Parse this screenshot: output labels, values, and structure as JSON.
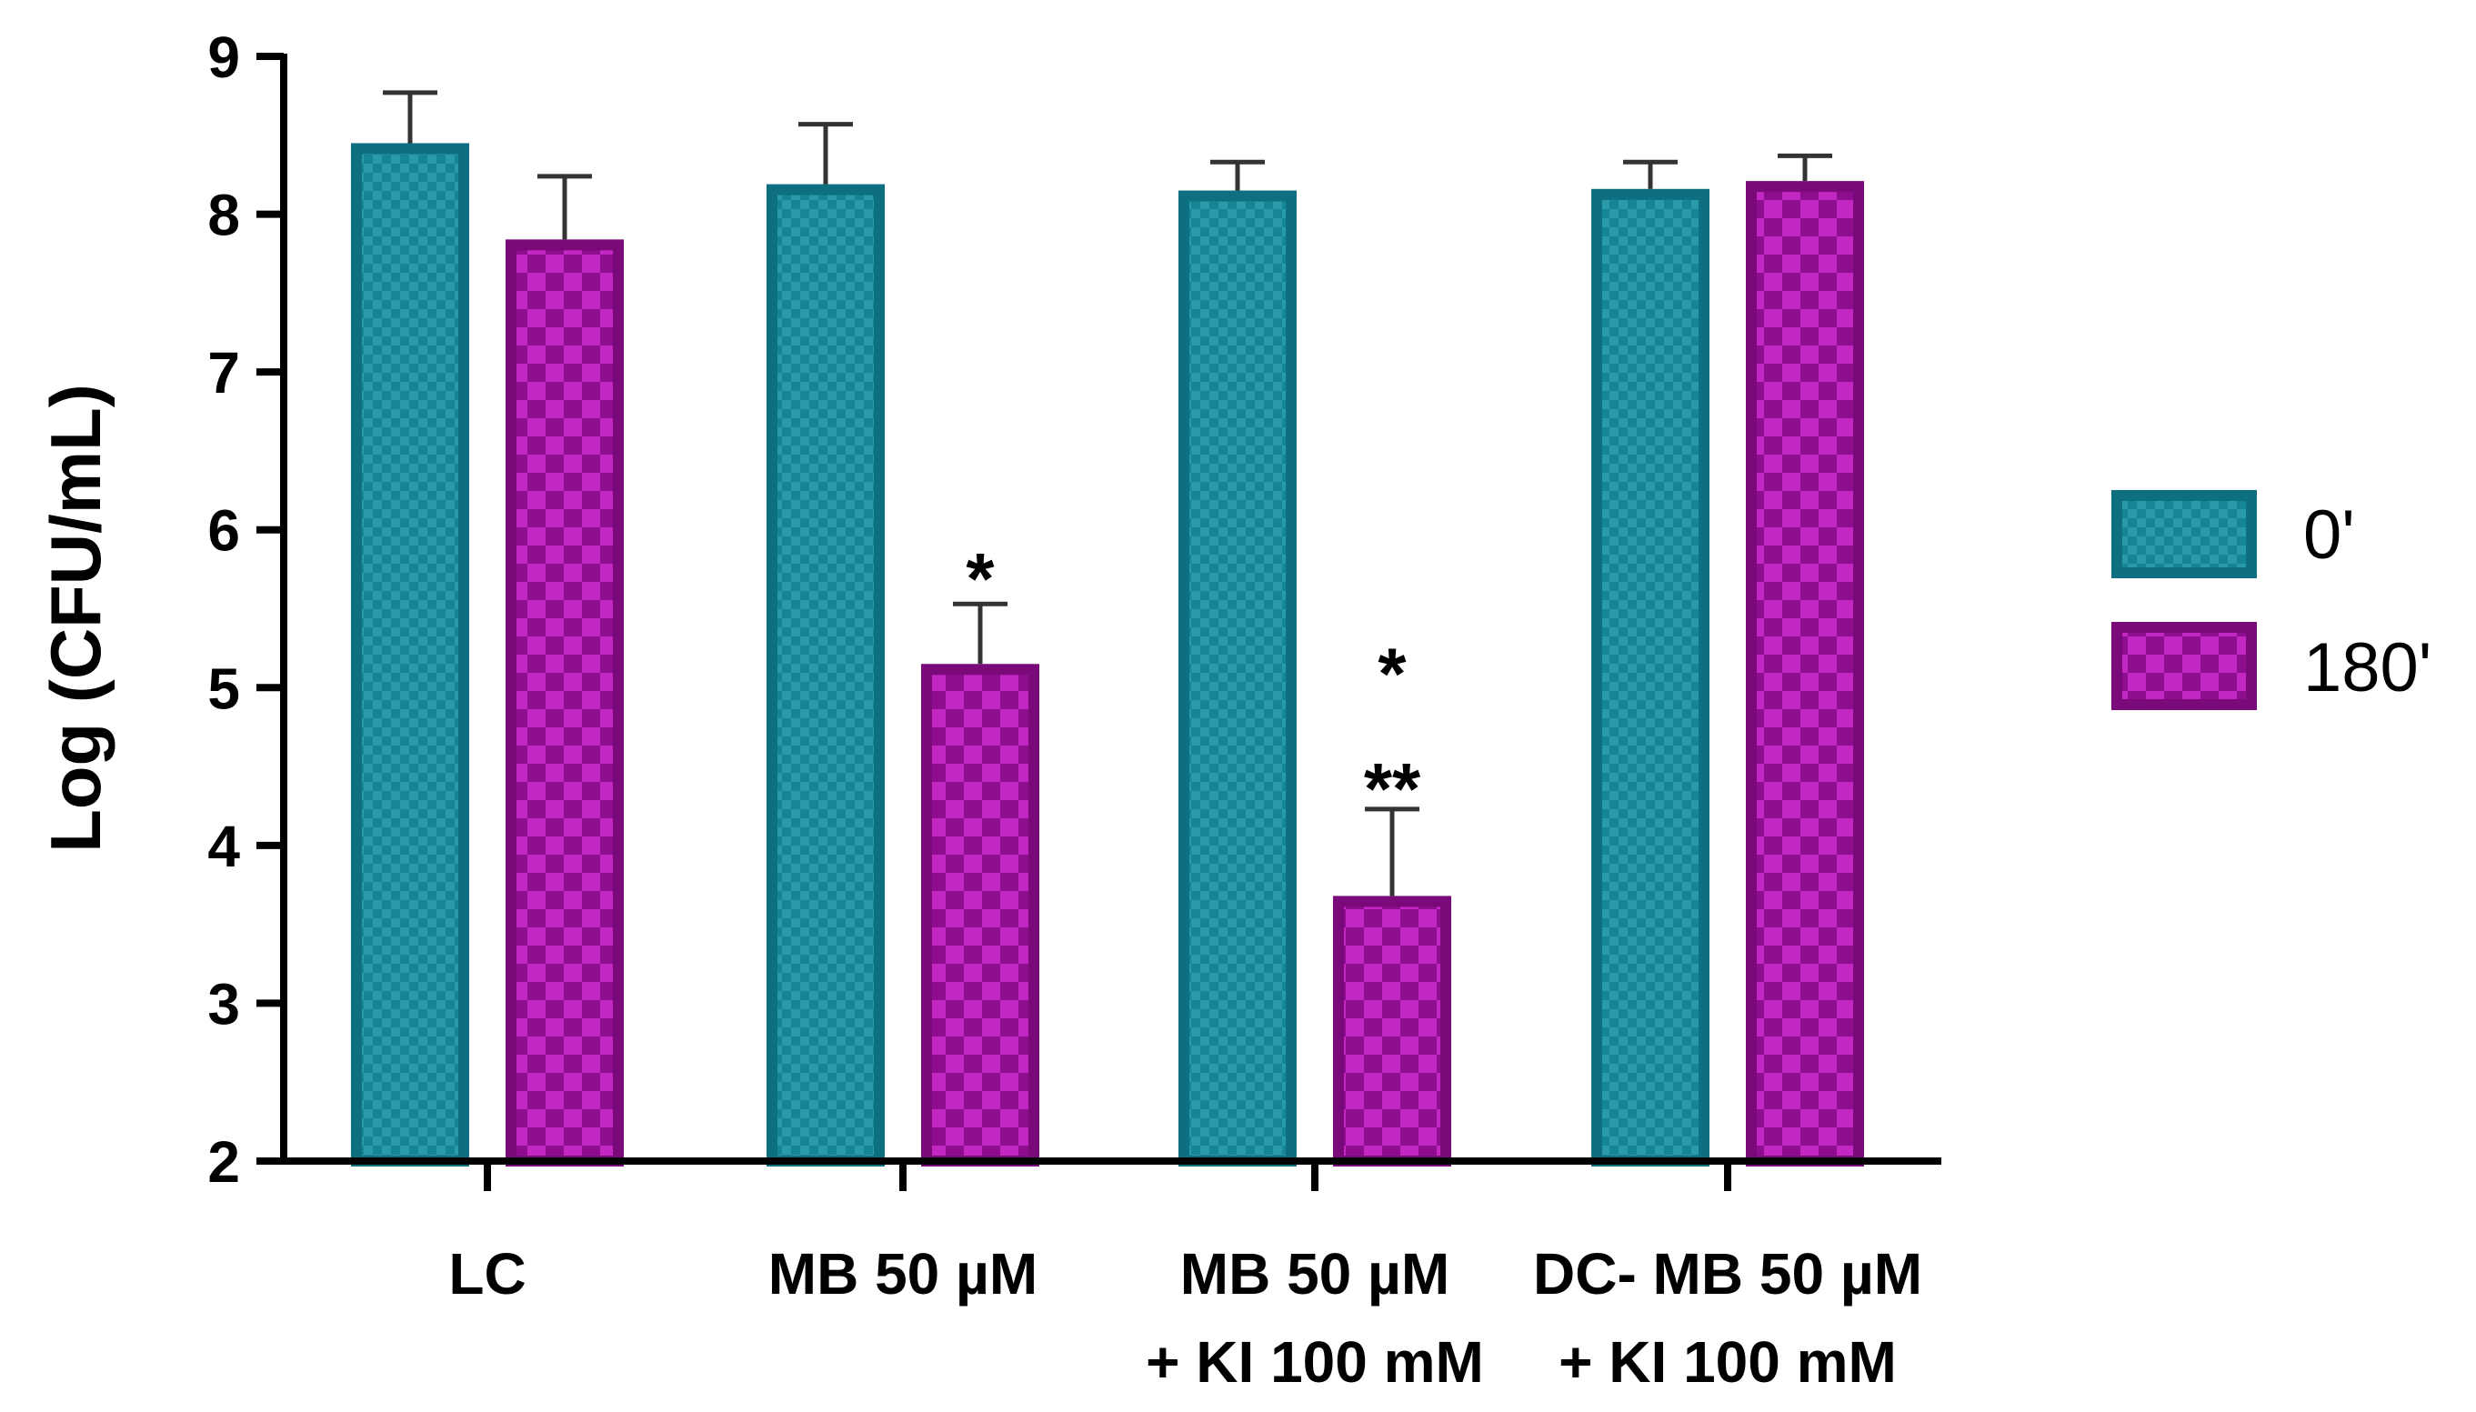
{
  "chart_data": {
    "type": "bar",
    "title": "",
    "xlabel": "",
    "ylabel": "Log (CFU/mL)",
    "ylim": [
      2,
      9
    ],
    "yticks": [
      2,
      3,
      4,
      5,
      6,
      7,
      8,
      9
    ],
    "categories": [
      {
        "line1": "LC",
        "line2": ""
      },
      {
        "line1": "MB 50 µM",
        "line2": ""
      },
      {
        "line1": "MB 50 µM",
        "line2": "+ KI 100 mM"
      },
      {
        "line1": "DC- MB 50 µM",
        "line2": "+ KI 100 mM"
      }
    ],
    "series": [
      {
        "name": "0'",
        "color": "#1a8a9a",
        "border": "#0e6f80",
        "values": [
          8.45,
          8.19,
          8.15,
          8.16
        ],
        "errors": [
          0.32,
          0.38,
          0.18,
          0.17
        ]
      },
      {
        "name": "180'",
        "color": "#a01aa0",
        "border": "#7a0a7a",
        "values": [
          7.84,
          5.15,
          3.68,
          8.21
        ],
        "errors": [
          0.4,
          0.38,
          0.55,
          0.16
        ]
      }
    ],
    "annotations": [
      {
        "category": 1,
        "series": 1,
        "text": "*",
        "y": 5.75
      },
      {
        "category": 2,
        "series": 1,
        "text": "*",
        "y": 5.15
      },
      {
        "category": 2,
        "series": 1,
        "text": "**",
        "y": 4.42
      }
    ],
    "legend": {
      "position": "right",
      "entries": [
        "0'",
        "180'"
      ]
    }
  }
}
